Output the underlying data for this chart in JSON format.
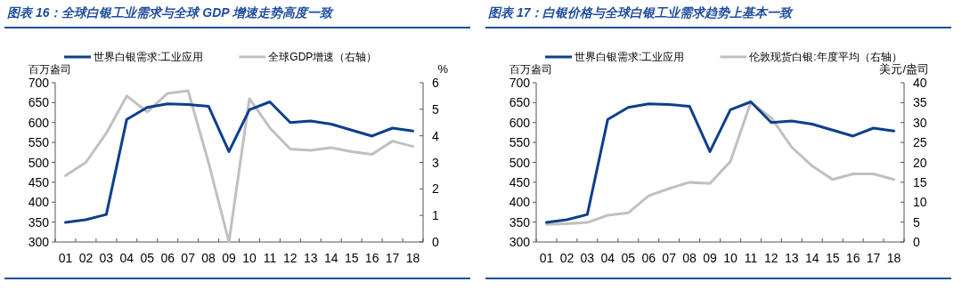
{
  "chart_data": [
    {
      "type": "line",
      "title": "图表 16：全球白银工业需求与全球 GDP 增速走势高度一致",
      "ylabel": "百万盎司",
      "y2label": "%",
      "categories": [
        "01",
        "02",
        "03",
        "04",
        "05",
        "06",
        "07",
        "08",
        "09",
        "10",
        "11",
        "12",
        "13",
        "14",
        "15",
        "16",
        "17",
        "18"
      ],
      "series": [
        {
          "name": "世界白银需求:工业应用",
          "color": "#0c3f8c",
          "values": [
            349,
            356,
            369,
            608,
            638,
            647,
            645,
            641,
            527,
            632,
            652,
            600,
            604,
            596,
            581,
            566,
            586,
            579
          ]
        },
        {
          "name": "全球GDP增速（右轴）",
          "color": "#c0c0c0",
          "axis": "y2",
          "values": [
            2.5,
            3.0,
            4.1,
            5.5,
            4.9,
            5.6,
            5.7,
            3.0,
            0.0,
            5.4,
            4.3,
            3.5,
            3.45,
            3.55,
            3.4,
            3.3,
            3.8,
            3.6
          ]
        }
      ],
      "ylim": [
        300,
        700
      ],
      "yticks": [
        300,
        350,
        400,
        450,
        500,
        550,
        600,
        650,
        700
      ],
      "y2lim": [
        0,
        6
      ],
      "y2ticks": [
        0,
        1,
        2,
        3,
        4,
        5,
        6
      ],
      "legend": "top",
      "grid": false,
      "marker": "none",
      "line_style": "solid"
    },
    {
      "type": "line",
      "title": "图表 17：白银价格与全球白银工业需求趋势上基本一致",
      "ylabel": "百万盎司",
      "y2label": "美元/盎司",
      "categories": [
        "01",
        "02",
        "03",
        "04",
        "05",
        "06",
        "07",
        "08",
        "09",
        "10",
        "11",
        "12",
        "13",
        "14",
        "15",
        "16",
        "17",
        "18"
      ],
      "series": [
        {
          "name": "世界白银需求:工业应用",
          "color": "#0c3f8c",
          "values": [
            349,
            356,
            369,
            608,
            638,
            647,
            645,
            641,
            527,
            632,
            652,
            600,
            604,
            596,
            581,
            566,
            586,
            579
          ]
        },
        {
          "name": "伦敦现货白银:年度平均（右轴）",
          "color": "#c0c0c0",
          "axis": "y2",
          "values": [
            4.4,
            4.6,
            4.9,
            6.7,
            7.3,
            11.6,
            13.4,
            15.0,
            14.7,
            20.2,
            35.1,
            31.2,
            23.8,
            19.1,
            15.7,
            17.1,
            17.1,
            15.7
          ]
        }
      ],
      "ylim": [
        300,
        700
      ],
      "yticks": [
        300,
        350,
        400,
        450,
        500,
        550,
        600,
        650,
        700
      ],
      "y2lim": [
        0,
        40
      ],
      "y2ticks": [
        0,
        5,
        10,
        15,
        20,
        25,
        30,
        35,
        40
      ],
      "legend": "top",
      "grid": false,
      "marker": "none",
      "line_style": "solid"
    }
  ]
}
